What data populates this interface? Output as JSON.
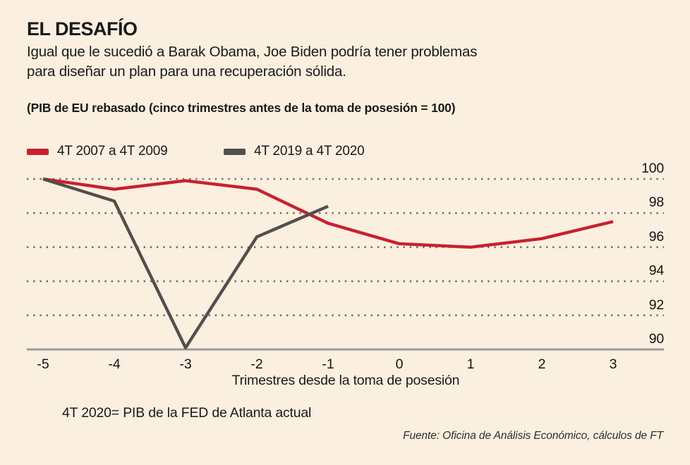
{
  "header": {
    "title": "EL DESAFÍO",
    "subtitle": [
      "Igual que le sucedió a Barak Obama, Joe Biden podría tener problemas",
      "para diseñar un plan para una recuperación sólida."
    ]
  },
  "chart_label": "(PIB de EU rebasado (cinco trimestres antes de la toma de posesión = 100)",
  "footnote": "4T 2020= PIB de la FED de Atlanta actual",
  "source": "Fuente: Oficina de Análisis Económico, cálculos de FT",
  "colors": {
    "background": "#fbefdf",
    "series_red": "#c8202f",
    "series_gray": "#524f4d",
    "axis": "#9b9b9b",
    "grid_dots": "#6d6d6d",
    "text": "#1a1a1a"
  },
  "chart_data": {
    "type": "line",
    "title": "(PIB de EU rebasado (cinco trimestres antes de la toma de posesión = 100)",
    "xlabel": "Trimestres desde la toma de posesión",
    "ylabel": "",
    "x": [
      -5,
      -4,
      -3,
      -2,
      -1,
      0,
      1,
      2,
      3
    ],
    "x_ticks": [
      -5,
      -4,
      -3,
      -2,
      -1,
      0,
      1,
      2,
      3
    ],
    "y_ticks": [
      100,
      98,
      96,
      94,
      92,
      90
    ],
    "ylim": [
      90,
      100
    ],
    "xlim": [
      -5,
      3
    ],
    "grid": "horizontal dotted, solid baseline at 90",
    "legend_position": "top-left",
    "series": [
      {
        "name": "4T 2007 a 4T 2009",
        "color": "#c8202f",
        "values": [
          100,
          99.4,
          99.9,
          99.4,
          97.4,
          96.2,
          96.0,
          96.5,
          97.5
        ]
      },
      {
        "name": "4T 2019 a 4T 2020",
        "color": "#524f4d",
        "values": [
          100,
          98.7,
          90.1,
          96.6,
          98.4
        ]
      }
    ]
  }
}
